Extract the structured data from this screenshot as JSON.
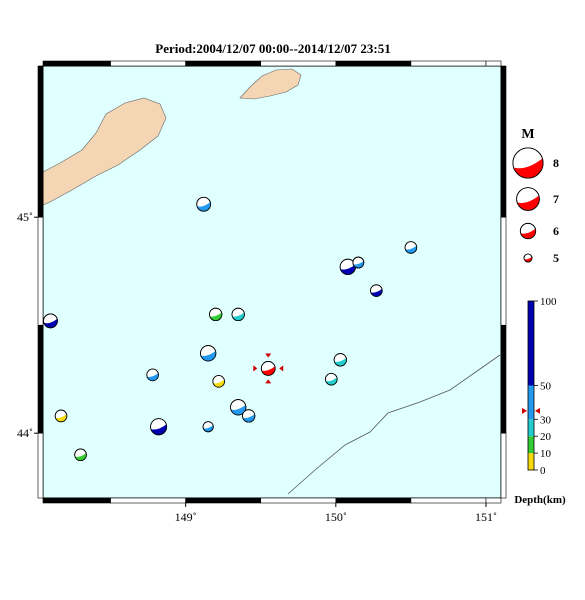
{
  "title": "Period:2004/12/07 00:00--2014/12/07 23:51",
  "map": {
    "lon_range": [
      148.05,
      151.1
    ],
    "lat_range": [
      43.7,
      45.7
    ],
    "x_ticks": [
      {
        "value": 149,
        "label": "149˚"
      },
      {
        "value": 150,
        "label": "150˚"
      },
      {
        "value": 151,
        "label": "151˚"
      }
    ],
    "y_ticks": [
      {
        "value": 44,
        "label": "44˚"
      },
      {
        "value": 45,
        "label": "45˚"
      }
    ],
    "colors": {
      "sea": "#e0ffff",
      "land": "#f5d6b4",
      "frame": "#000000"
    }
  },
  "magnitude_legend": {
    "title": "M",
    "items": [
      {
        "magnitude": 8,
        "label": "8"
      },
      {
        "magnitude": 7,
        "label": "7"
      },
      {
        "magnitude": 6,
        "label": "6"
      },
      {
        "magnitude": 5,
        "label": "5"
      }
    ]
  },
  "depth_scale": {
    "title": "Depth(km)",
    "ticks": [
      {
        "value": 100,
        "label": "100"
      },
      {
        "value": 50,
        "label": "50"
      },
      {
        "value": 30,
        "label": "30"
      },
      {
        "value": 20,
        "label": "20"
      },
      {
        "value": 10,
        "label": "10"
      },
      {
        "value": 0,
        "label": "0"
      }
    ],
    "bands": [
      {
        "from": 0,
        "to": 10,
        "color": "#f5d90a"
      },
      {
        "from": 10,
        "to": 20,
        "color": "#33cc33"
      },
      {
        "from": 20,
        "to": 30,
        "color": "#22cccc"
      },
      {
        "from": 30,
        "to": 50,
        "color": "#2299ee"
      },
      {
        "from": 50,
        "to": 100,
        "color": "#0000b0"
      }
    ],
    "highlight_depth": 35
  },
  "events": [
    {
      "lon": 149.12,
      "lat": 45.06,
      "mag": 5.8,
      "depth": 40
    },
    {
      "lon": 148.1,
      "lat": 44.52,
      "mag": 5.8,
      "depth": 60
    },
    {
      "lon": 149.2,
      "lat": 44.55,
      "mag": 5.6,
      "depth": 15
    },
    {
      "lon": 149.35,
      "lat": 44.55,
      "mag": 5.6,
      "depth": 25
    },
    {
      "lon": 149.15,
      "lat": 44.37,
      "mag": 6.0,
      "depth": 40
    },
    {
      "lon": 148.78,
      "lat": 44.27,
      "mag": 5.5,
      "depth": 40
    },
    {
      "lon": 149.22,
      "lat": 44.24,
      "mag": 5.5,
      "depth": 5
    },
    {
      "lon": 149.35,
      "lat": 44.12,
      "mag": 6.0,
      "depth": 40
    },
    {
      "lon": 149.42,
      "lat": 44.08,
      "mag": 5.6,
      "depth": 40
    },
    {
      "lon": 148.17,
      "lat": 44.08,
      "mag": 5.5,
      "depth": 5
    },
    {
      "lon": 148.82,
      "lat": 44.03,
      "mag": 6.1,
      "depth": 70
    },
    {
      "lon": 149.15,
      "lat": 44.03,
      "mag": 5.3,
      "depth": 40
    },
    {
      "lon": 148.3,
      "lat": 43.9,
      "mag": 5.5,
      "depth": 15
    },
    {
      "lon": 150.08,
      "lat": 44.77,
      "mag": 6.0,
      "depth": 60
    },
    {
      "lon": 150.15,
      "lat": 44.79,
      "mag": 5.4,
      "depth": 40
    },
    {
      "lon": 150.5,
      "lat": 44.86,
      "mag": 5.5,
      "depth": 40
    },
    {
      "lon": 150.27,
      "lat": 44.66,
      "mag": 5.5,
      "depth": 80
    },
    {
      "lon": 150.03,
      "lat": 44.34,
      "mag": 5.6,
      "depth": 25
    },
    {
      "lon": 149.97,
      "lat": 44.25,
      "mag": 5.5,
      "depth": 25
    },
    {
      "lon": 149.55,
      "lat": 44.3,
      "mag": 5.8,
      "depth": 35,
      "highlight": true
    }
  ]
}
